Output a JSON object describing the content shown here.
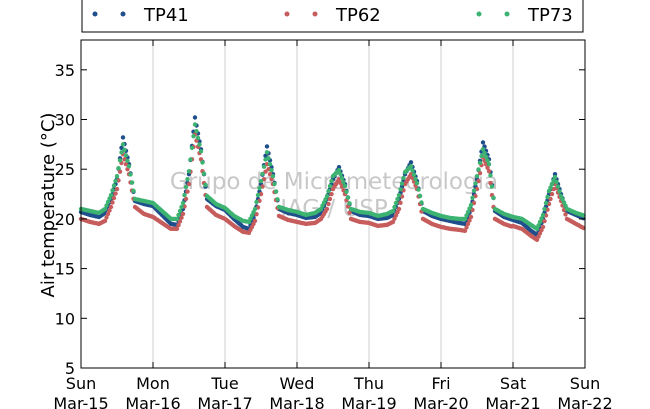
{
  "chart_data": {
    "type": "scatter",
    "ylabel": "Air temperature (°C)",
    "xlabel": "",
    "ylim": [
      5,
      38
    ],
    "yticks": [
      5,
      10,
      15,
      20,
      25,
      30,
      35
    ],
    "xlim": [
      "2015-03-15",
      "2015-03-22"
    ],
    "xticks": [
      {
        "day": "Sun",
        "date": "Mar-15"
      },
      {
        "day": "Mon",
        "date": "Mar-16"
      },
      {
        "day": "Tue",
        "date": "Mar-17"
      },
      {
        "day": "Wed",
        "date": "Mar-18"
      },
      {
        "day": "Thu",
        "date": "Mar-19"
      },
      {
        "day": "Fri",
        "date": "Mar-20"
      },
      {
        "day": "Sat",
        "date": "Mar-21"
      },
      {
        "day": "Sun",
        "date": "Mar-22"
      }
    ],
    "grid": "vertical",
    "legend_position": "top",
    "watermark": [
      "Grupo de Micrometeorologia",
      "IAG / USP"
    ],
    "daily_profile_hours": [
      0,
      3,
      6,
      8,
      10,
      12,
      14,
      16,
      18,
      21,
      24
    ],
    "series": [
      {
        "name": "TP41",
        "color": "#1f4e8c",
        "daily_profiles": [
          [
            20.7,
            20.4,
            20.2,
            20.6,
            22.0,
            24.0,
            28.2,
            25.5,
            21.8,
            21.5,
            21.3
          ],
          [
            21.3,
            20.4,
            19.5,
            19.4,
            21.0,
            24.5,
            30.2,
            27.0,
            22.0,
            21.3,
            20.9
          ],
          [
            20.9,
            20.0,
            19.2,
            19.0,
            20.5,
            23.5,
            27.3,
            24.5,
            21.0,
            20.6,
            20.4
          ],
          [
            20.4,
            20.1,
            20.2,
            20.6,
            22.0,
            24.0,
            25.2,
            23.5,
            20.8,
            20.4,
            20.3
          ],
          [
            20.3,
            20.0,
            20.1,
            20.4,
            22.0,
            24.5,
            25.7,
            23.8,
            20.8,
            20.3,
            20.0
          ],
          [
            20.0,
            19.8,
            19.6,
            19.5,
            21.0,
            24.0,
            27.7,
            26.0,
            20.8,
            20.2,
            19.9
          ],
          [
            19.9,
            19.6,
            18.8,
            18.4,
            20.0,
            22.5,
            24.5,
            22.5,
            20.8,
            20.4,
            20.0
          ]
        ]
      },
      {
        "name": "TP62",
        "color": "#c65c5c",
        "daily_profiles": [
          [
            20.0,
            19.7,
            19.5,
            19.8,
            21.2,
            23.0,
            26.5,
            24.5,
            21.2,
            20.5,
            20.2
          ],
          [
            20.2,
            19.6,
            19.0,
            19.0,
            20.5,
            23.5,
            28.5,
            26.0,
            21.2,
            20.4,
            20.0
          ],
          [
            20.0,
            19.3,
            18.7,
            18.6,
            19.8,
            22.5,
            25.5,
            23.5,
            20.3,
            19.9,
            19.7
          ],
          [
            19.7,
            19.5,
            19.6,
            20.0,
            21.0,
            23.0,
            24.0,
            22.5,
            20.0,
            19.7,
            19.6
          ],
          [
            19.6,
            19.3,
            19.4,
            19.7,
            21.0,
            23.5,
            24.5,
            23.0,
            20.0,
            19.5,
            19.2
          ],
          [
            19.2,
            19.0,
            18.9,
            18.8,
            20.2,
            23.0,
            26.2,
            24.8,
            20.0,
            19.5,
            19.2
          ],
          [
            19.3,
            19.0,
            18.3,
            17.9,
            19.2,
            21.5,
            23.5,
            21.8,
            20.0,
            19.5,
            19.0
          ]
        ]
      },
      {
        "name": "TP73",
        "color": "#3cb371",
        "daily_profiles": [
          [
            21.0,
            20.8,
            20.6,
            21.0,
            22.4,
            24.3,
            27.5,
            25.3,
            22.0,
            21.8,
            21.6
          ],
          [
            21.6,
            20.8,
            20.0,
            20.0,
            21.6,
            24.8,
            29.5,
            26.8,
            22.3,
            21.5,
            21.1
          ],
          [
            21.1,
            20.3,
            19.8,
            19.7,
            21.0,
            23.8,
            26.7,
            24.3,
            21.2,
            20.9,
            20.7
          ],
          [
            20.7,
            20.4,
            20.6,
            21.0,
            22.3,
            24.3,
            24.9,
            23.3,
            21.0,
            20.7,
            20.6
          ],
          [
            20.6,
            20.3,
            20.5,
            20.8,
            22.4,
            24.7,
            25.3,
            23.6,
            21.0,
            20.6,
            20.3
          ],
          [
            20.3,
            20.1,
            20.0,
            20.0,
            21.4,
            24.3,
            27.0,
            25.5,
            21.0,
            20.5,
            20.2
          ],
          [
            20.2,
            20.0,
            19.4,
            19.0,
            20.4,
            22.8,
            24.2,
            22.3,
            21.0,
            20.6,
            20.3
          ]
        ]
      }
    ]
  }
}
